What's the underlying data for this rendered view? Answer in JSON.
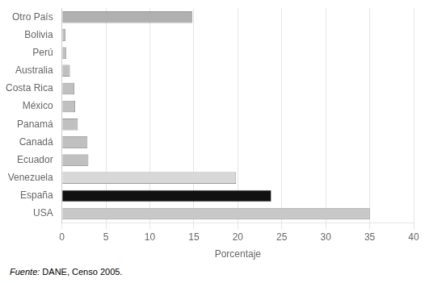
{
  "chart_data": {
    "type": "bar",
    "orientation": "horizontal",
    "categories": [
      "USA",
      "España",
      "Venezuela",
      "Ecuador",
      "Canadá",
      "Panamá",
      "México",
      "Costa Rica",
      "Australia",
      "Perú",
      "Bolivia",
      "Otro País"
    ],
    "values": [
      35.0,
      23.8,
      19.8,
      3.0,
      2.9,
      1.8,
      1.5,
      1.4,
      0.9,
      0.5,
      0.4,
      14.8
    ],
    "colors": [
      "#c8c8c8",
      "#111111",
      "#d8d8d8",
      "#c0c0c0",
      "#c0c0c0",
      "#c0c0c0",
      "#c0c0c0",
      "#c0c0c0",
      "#c0c0c0",
      "#c0c0c0",
      "#c0c0c0",
      "#b0b0b0"
    ],
    "xlabel": "Porcentaje",
    "xlim": [
      0,
      40
    ],
    "xticks": [
      0,
      5,
      10,
      15,
      20,
      25,
      30,
      35,
      40
    ],
    "grid": true,
    "annotations": [
      "Fuente:",
      "DANE, Censo 2005."
    ]
  }
}
